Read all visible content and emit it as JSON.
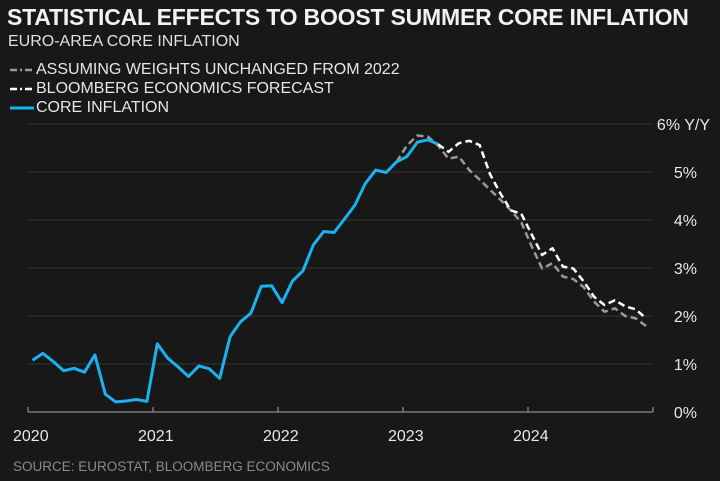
{
  "title": "STATISTICAL EFFECTS TO BOOST SUMMER CORE INFLATION",
  "subtitle": "EURO-AREA CORE INFLATION",
  "source": "SOURCE: EUROSTAT, BLOOMBERG ECONOMICS",
  "legend": [
    {
      "label": "ASSUMING WEIGHTS UNCHANGED FROM 2022",
      "style": "dashed",
      "color": "#9a9a9a"
    },
    {
      "label": "BLOOMBERG ECONOMICS FORECAST",
      "style": "dashed",
      "color": "#ffffff"
    },
    {
      "label": "CORE INFLATION",
      "style": "solid",
      "color": "#1ab2f0"
    }
  ],
  "chart_data": {
    "type": "line",
    "title": "STATISTICAL EFFECTS TO BOOST SUMMER CORE INFLATION",
    "subtitle": "EURO-AREA CORE INFLATION",
    "xlabel": "",
    "ylabel": "Y/Y",
    "x_start": "2020-01",
    "x_frequency": "monthly",
    "x_ticks": [
      "2020",
      "2021",
      "2022",
      "2023",
      "2024"
    ],
    "y_ticks": [
      "0%",
      "1%",
      "2%",
      "3%",
      "4%",
      "5%",
      "6% Y/Y"
    ],
    "ylim": [
      0,
      6
    ],
    "grid": true,
    "legend_position": "top-left",
    "series": [
      {
        "name": "CORE INFLATION",
        "color": "#1ab2f0",
        "style": "solid",
        "start_index": 0,
        "values": [
          1.08,
          1.22,
          1.05,
          0.86,
          0.91,
          0.83,
          1.19,
          0.37,
          0.21,
          0.23,
          0.26,
          0.22,
          1.42,
          1.12,
          0.94,
          0.74,
          0.96,
          0.9,
          0.7,
          1.57,
          1.88,
          2.06,
          2.62,
          2.63,
          2.28,
          2.73,
          2.94,
          3.48,
          3.76,
          3.74,
          4.02,
          4.31,
          4.76,
          5.04,
          4.99,
          5.21,
          5.32,
          5.62,
          5.67,
          5.58
        ]
      },
      {
        "name": "ASSUMING WEIGHTS UNCHANGED FROM 2022",
        "color": "#9a9a9a",
        "style": "dashed",
        "start_index": 35,
        "values": [
          5.21,
          5.55,
          5.76,
          5.74,
          5.55,
          5.28,
          5.32,
          5.04,
          4.84,
          4.63,
          4.42,
          4.2,
          3.95,
          3.45,
          2.99,
          3.1,
          2.82,
          2.77,
          2.6,
          2.3,
          2.09,
          2.16,
          2.0,
          1.95,
          1.79
        ]
      },
      {
        "name": "BLOOMBERG ECONOMICS FORECAST",
        "color": "#ffffff",
        "style": "dashed",
        "start_index": 39,
        "values": [
          5.58,
          5.42,
          5.6,
          5.65,
          5.56,
          4.95,
          4.55,
          4.2,
          4.13,
          3.7,
          3.27,
          3.41,
          3.03,
          2.99,
          2.72,
          2.4,
          2.23,
          2.33,
          2.2,
          2.14,
          1.95
        ]
      }
    ]
  }
}
